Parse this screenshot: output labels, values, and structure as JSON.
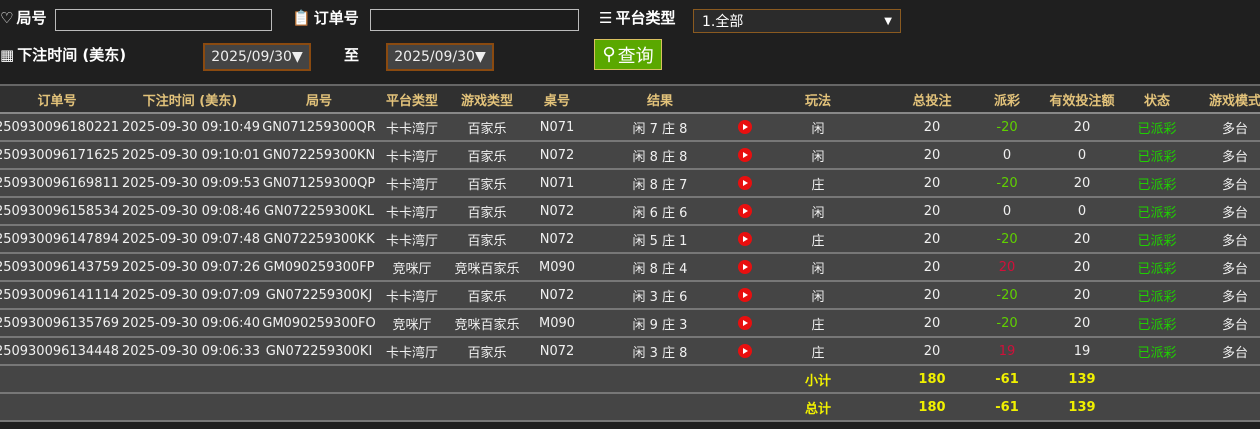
{
  "filters": {
    "round_label": "局号",
    "round_value": "",
    "order_label": "订单号",
    "order_value": "",
    "platform_label": "平台类型",
    "platform_value": "1.全部",
    "time_label": "下注时间 (美东)",
    "date_from": "2025/09/30▼",
    "to_label": "至",
    "date_to": "2025/09/30▼",
    "query_label": "查询"
  },
  "columns": [
    "订单号",
    "下注时间 (美东)",
    "局号",
    "平台类型",
    "游戏类型",
    "桌号",
    "结果",
    "",
    "玩法",
    "总投注",
    "派彩",
    "有效投注额",
    "状态",
    "游戏模式"
  ],
  "rows": [
    {
      "order": "250930096180221",
      "time": "2025-09-30 09:10:49",
      "round": "GN071259300QR",
      "platform": "卡卡湾厅",
      "game": "百家乐",
      "table": "N071",
      "result": "闲 7 庄 8",
      "play": "闲",
      "bet": "20",
      "payout": "-20",
      "payout_color": "green",
      "valid": "20",
      "status": "已派彩",
      "mode": "多台"
    },
    {
      "order": "250930096171625",
      "time": "2025-09-30 09:10:01",
      "round": "GN072259300KN",
      "platform": "卡卡湾厅",
      "game": "百家乐",
      "table": "N072",
      "result": "闲 8 庄 8",
      "play": "闲",
      "bet": "20",
      "payout": "0",
      "payout_color": "white",
      "valid": "0",
      "status": "已派彩",
      "mode": "多台"
    },
    {
      "order": "250930096169811",
      "time": "2025-09-30 09:09:53",
      "round": "GN071259300QP",
      "platform": "卡卡湾厅",
      "game": "百家乐",
      "table": "N071",
      "result": "闲 8 庄 7",
      "play": "庄",
      "bet": "20",
      "payout": "-20",
      "payout_color": "green",
      "valid": "20",
      "status": "已派彩",
      "mode": "多台"
    },
    {
      "order": "250930096158534",
      "time": "2025-09-30 09:08:46",
      "round": "GN072259300KL",
      "platform": "卡卡湾厅",
      "game": "百家乐",
      "table": "N072",
      "result": "闲 6 庄 6",
      "play": "闲",
      "bet": "20",
      "payout": "0",
      "payout_color": "white",
      "valid": "0",
      "status": "已派彩",
      "mode": "多台"
    },
    {
      "order": "250930096147894",
      "time": "2025-09-30 09:07:48",
      "round": "GN072259300KK",
      "platform": "卡卡湾厅",
      "game": "百家乐",
      "table": "N072",
      "result": "闲 5 庄 1",
      "play": "庄",
      "bet": "20",
      "payout": "-20",
      "payout_color": "green",
      "valid": "20",
      "status": "已派彩",
      "mode": "多台"
    },
    {
      "order": "250930096143759",
      "time": "2025-09-30 09:07:26",
      "round": "GM090259300FP",
      "platform": "竞咪厅",
      "game": "竞咪百家乐",
      "table": "M090",
      "result": "闲 8 庄 4",
      "play": "闲",
      "bet": "20",
      "payout": "20",
      "payout_color": "red",
      "valid": "20",
      "status": "已派彩",
      "mode": "多台"
    },
    {
      "order": "250930096141114",
      "time": "2025-09-30 09:07:09",
      "round": "GN072259300KJ",
      "platform": "卡卡湾厅",
      "game": "百家乐",
      "table": "N072",
      "result": "闲 3 庄 6",
      "play": "闲",
      "bet": "20",
      "payout": "-20",
      "payout_color": "green",
      "valid": "20",
      "status": "已派彩",
      "mode": "多台"
    },
    {
      "order": "250930096135769",
      "time": "2025-09-30 09:06:40",
      "round": "GM090259300FO",
      "platform": "竞咪厅",
      "game": "竞咪百家乐",
      "table": "M090",
      "result": "闲 9 庄 3",
      "play": "庄",
      "bet": "20",
      "payout": "-20",
      "payout_color": "green",
      "valid": "20",
      "status": "已派彩",
      "mode": "多台"
    },
    {
      "order": "250930096134448",
      "time": "2025-09-30 09:06:33",
      "round": "GN072259300KI",
      "platform": "卡卡湾厅",
      "game": "百家乐",
      "table": "N072",
      "result": "闲 3 庄 8",
      "play": "庄",
      "bet": "20",
      "payout": "19",
      "payout_color": "red",
      "valid": "19",
      "status": "已派彩",
      "mode": "多台"
    }
  ],
  "subtotal": {
    "label": "小计",
    "bet": "180",
    "payout": "-61",
    "valid": "139"
  },
  "total": {
    "label": "总计",
    "bet": "180",
    "payout": "-61",
    "valid": "139"
  },
  "colors": {
    "green": "#5fd000",
    "red": "#d0103a",
    "status": "#1fd000",
    "total": "#f0f000",
    "header": "#e2c27a"
  }
}
